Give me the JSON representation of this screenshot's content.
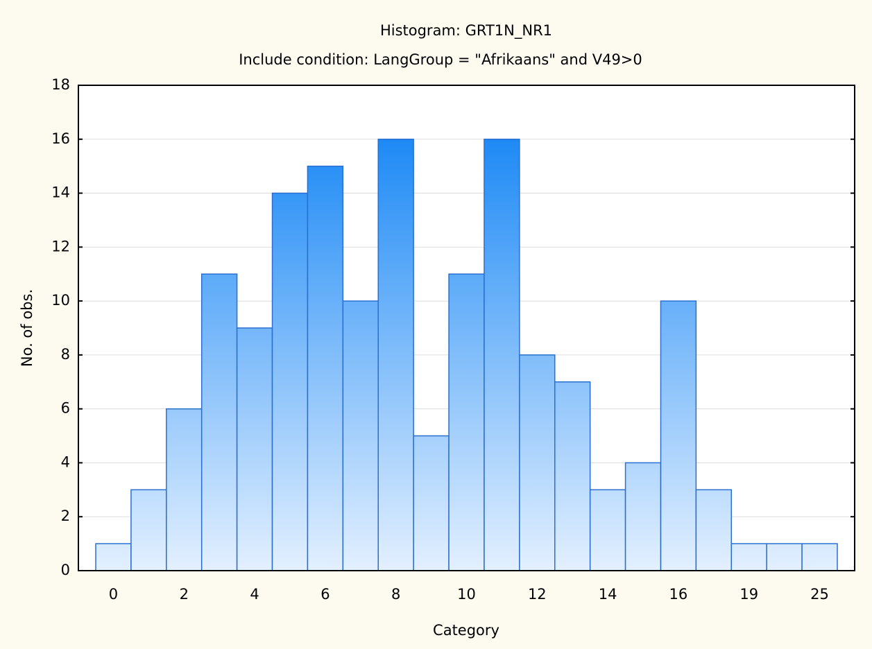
{
  "chart_data": {
    "type": "bar",
    "title": "Histogram: GRT1N_NR1",
    "subtitle": "Include condition: LangGroup = \"Afrikaans\" and V49>0",
    "x_label": "Category",
    "y_label": "No. of obs.",
    "categories": [
      "0",
      null,
      "2",
      null,
      "4",
      null,
      "6",
      null,
      "8",
      null,
      "10",
      null,
      "12",
      null,
      "14",
      null,
      "16",
      null,
      "19",
      null,
      "25"
    ],
    "values": [
      1,
      3,
      6,
      11,
      9,
      14,
      15,
      10,
      16,
      5,
      11,
      16,
      8,
      7,
      3,
      4,
      10,
      3,
      1,
      1,
      1
    ],
    "color": "#1e8af5",
    "ylim": [
      0,
      18
    ],
    "yticks": [
      0,
      2,
      4,
      6,
      8,
      10,
      12,
      14,
      16,
      18
    ],
    "grid": true
  }
}
